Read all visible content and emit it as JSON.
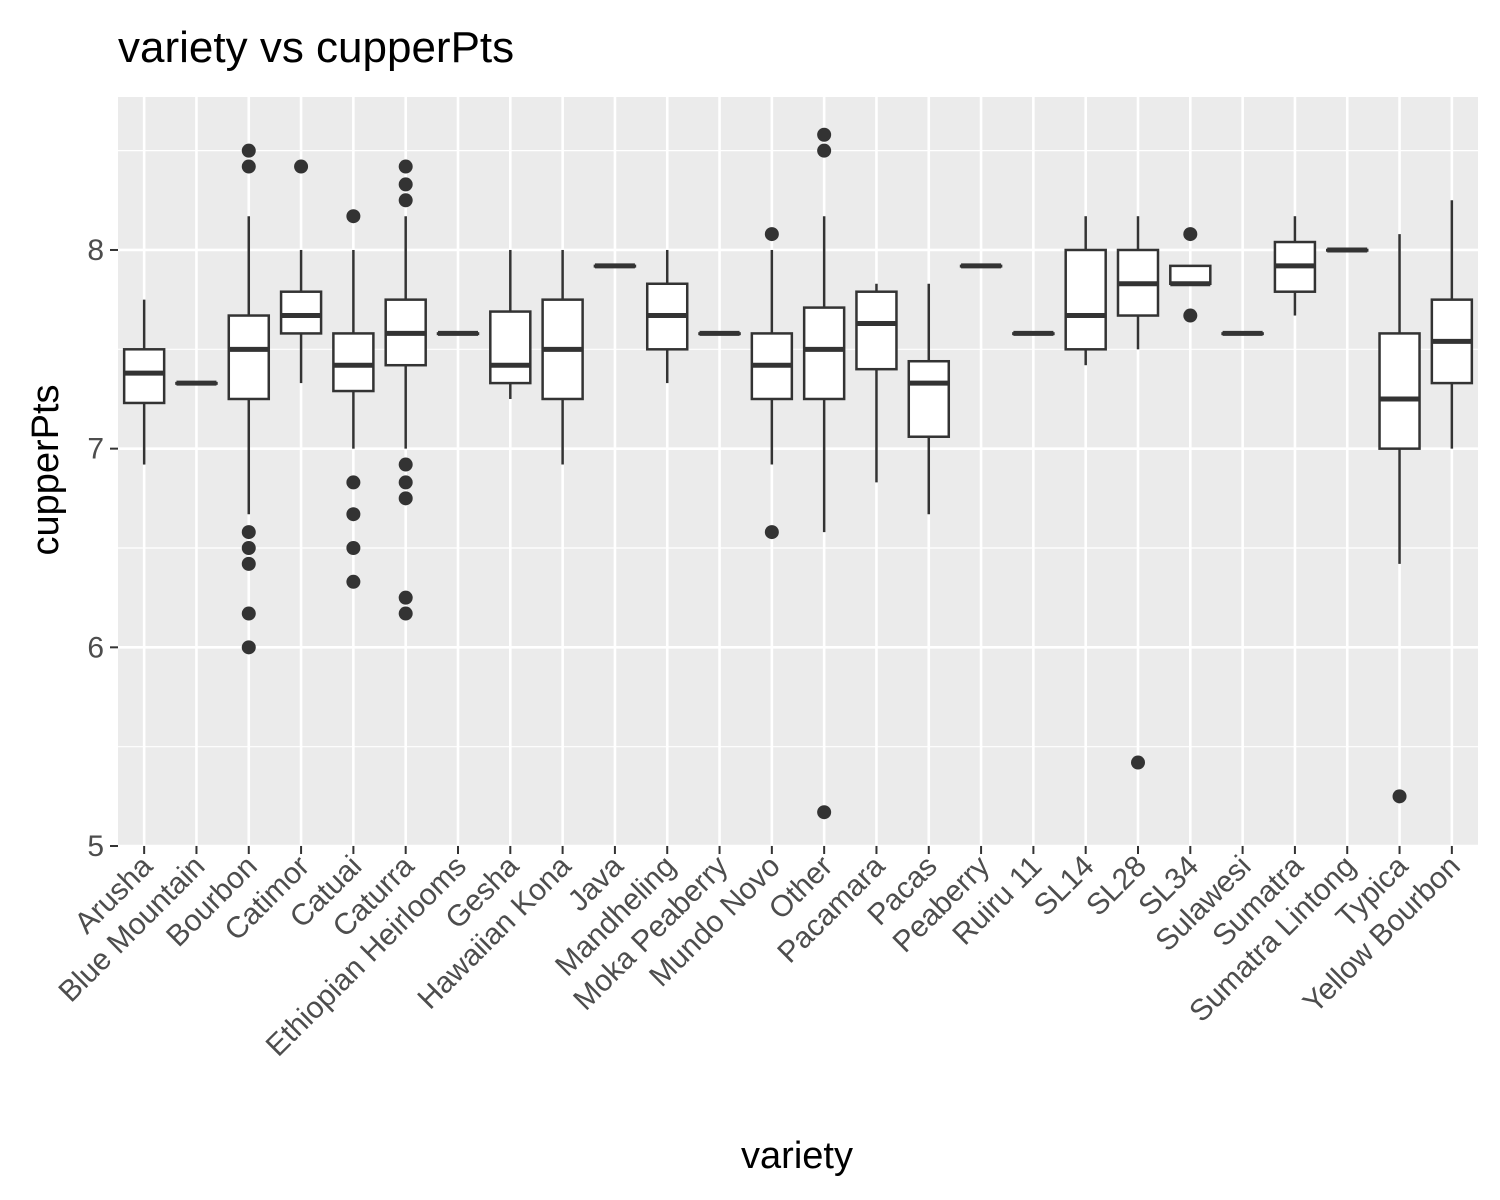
{
  "chart_data": {
    "type": "boxplot",
    "title": "variety vs cupperPts",
    "xlabel": "variety",
    "ylabel": "cupperPts",
    "ylim": [
      5,
      8.5
    ],
    "yticks": [
      5,
      6,
      7,
      8
    ],
    "grid": true,
    "colors": {
      "panel": "#ebebeb",
      "grid": "#ffffff",
      "box_line": "#333333",
      "box_fill": "#ffffff",
      "tick_text": "#4d4d4d"
    },
    "categories": [
      "Arusha",
      "Blue Mountain",
      "Bourbon",
      "Catimor",
      "Catuai",
      "Caturra",
      "Ethiopian Heirlooms",
      "Gesha",
      "Hawaiian Kona",
      "Java",
      "Mandheling",
      "Moka Peaberry",
      "Mundo Novo",
      "Other",
      "Pacamara",
      "Pacas",
      "Peaberry",
      "Ruiru 11",
      "SL14",
      "SL28",
      "SL34",
      "Sulawesi",
      "Sumatra",
      "Sumatra Lintong",
      "Typica",
      "Yellow Bourbon"
    ],
    "boxes": [
      {
        "min": 6.92,
        "q1": 7.23,
        "median": 7.38,
        "q3": 7.5,
        "max": 7.75,
        "outliers": []
      },
      {
        "min": 7.33,
        "q1": 7.33,
        "median": 7.33,
        "q3": 7.33,
        "max": 7.33,
        "outliers": []
      },
      {
        "min": 6.67,
        "q1": 7.25,
        "median": 7.5,
        "q3": 7.67,
        "max": 8.17,
        "outliers": [
          8.5,
          8.42,
          6.58,
          6.5,
          6.42,
          6.17,
          6.0
        ]
      },
      {
        "min": 7.33,
        "q1": 7.58,
        "median": 7.67,
        "q3": 7.79,
        "max": 8.0,
        "outliers": [
          8.42
        ]
      },
      {
        "min": 7.0,
        "q1": 7.29,
        "median": 7.42,
        "q3": 7.58,
        "max": 8.0,
        "outliers": [
          8.17,
          6.83,
          6.67,
          6.5,
          6.33
        ]
      },
      {
        "min": 7.0,
        "q1": 7.42,
        "median": 7.58,
        "q3": 7.75,
        "max": 8.17,
        "outliers": [
          8.42,
          8.33,
          8.25,
          6.92,
          6.83,
          6.75,
          6.25,
          6.17
        ]
      },
      {
        "min": 7.58,
        "q1": 7.58,
        "median": 7.58,
        "q3": 7.58,
        "max": 7.58,
        "outliers": []
      },
      {
        "min": 7.25,
        "q1": 7.33,
        "median": 7.42,
        "q3": 7.69,
        "max": 8.0,
        "outliers": []
      },
      {
        "min": 6.92,
        "q1": 7.25,
        "median": 7.5,
        "q3": 7.75,
        "max": 8.0,
        "outliers": []
      },
      {
        "min": 7.92,
        "q1": 7.92,
        "median": 7.92,
        "q3": 7.92,
        "max": 7.92,
        "outliers": []
      },
      {
        "min": 7.33,
        "q1": 7.5,
        "median": 7.67,
        "q3": 7.83,
        "max": 8.0,
        "outliers": []
      },
      {
        "min": 7.58,
        "q1": 7.58,
        "median": 7.58,
        "q3": 7.58,
        "max": 7.58,
        "outliers": []
      },
      {
        "min": 6.92,
        "q1": 7.25,
        "median": 7.42,
        "q3": 7.58,
        "max": 8.0,
        "outliers": [
          8.08,
          6.58
        ]
      },
      {
        "min": 6.58,
        "q1": 7.25,
        "median": 7.5,
        "q3": 7.71,
        "max": 8.17,
        "outliers": [
          8.58,
          8.5,
          5.17
        ]
      },
      {
        "min": 6.83,
        "q1": 7.4,
        "median": 7.63,
        "q3": 7.79,
        "max": 7.83,
        "outliers": []
      },
      {
        "min": 6.67,
        "q1": 7.06,
        "median": 7.33,
        "q3": 7.44,
        "max": 7.83,
        "outliers": []
      },
      {
        "min": 7.92,
        "q1": 7.92,
        "median": 7.92,
        "q3": 7.92,
        "max": 7.92,
        "outliers": []
      },
      {
        "min": 7.58,
        "q1": 7.58,
        "median": 7.58,
        "q3": 7.58,
        "max": 7.58,
        "outliers": []
      },
      {
        "min": 7.42,
        "q1": 7.5,
        "median": 7.67,
        "q3": 8.0,
        "max": 8.17,
        "outliers": []
      },
      {
        "min": 7.5,
        "q1": 7.67,
        "median": 7.83,
        "q3": 8.0,
        "max": 8.17,
        "outliers": [
          5.42
        ]
      },
      {
        "min": 7.83,
        "q1": 7.83,
        "median": 7.83,
        "q3": 7.92,
        "max": 7.92,
        "outliers": [
          8.08,
          7.67
        ]
      },
      {
        "min": 7.58,
        "q1": 7.58,
        "median": 7.58,
        "q3": 7.58,
        "max": 7.58,
        "outliers": []
      },
      {
        "min": 7.67,
        "q1": 7.79,
        "median": 7.92,
        "q3": 8.04,
        "max": 8.17,
        "outliers": []
      },
      {
        "min": 8.0,
        "q1": 8.0,
        "median": 8.0,
        "q3": 8.0,
        "max": 8.0,
        "outliers": []
      },
      {
        "min": 6.42,
        "q1": 7.0,
        "median": 7.25,
        "q3": 7.58,
        "max": 8.08,
        "outliers": [
          5.25
        ]
      },
      {
        "min": 7.0,
        "q1": 7.33,
        "median": 7.54,
        "q3": 7.75,
        "max": 8.25,
        "outliers": []
      }
    ]
  }
}
